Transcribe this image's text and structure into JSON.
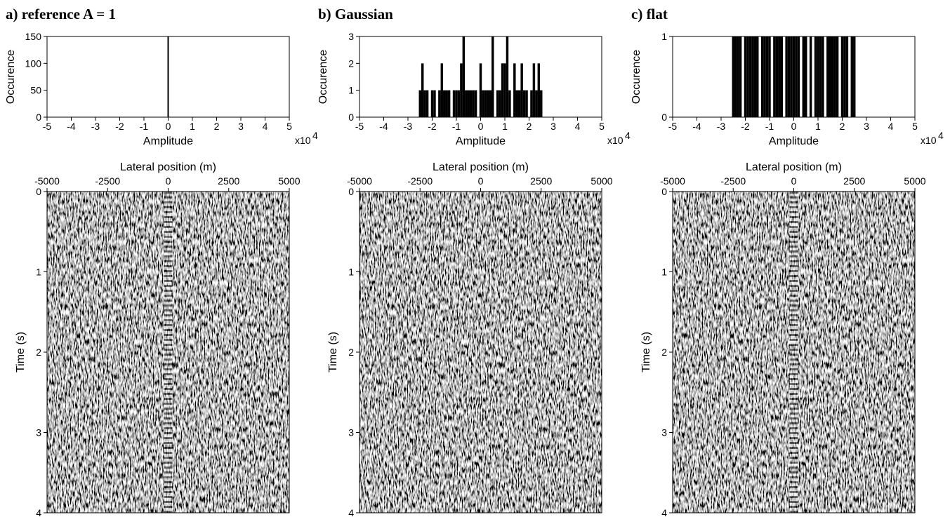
{
  "chart_data": [
    {
      "type": "histogram",
      "title": "a) reference A = 1",
      "xlabel": "Amplitude",
      "ylabel": "Occurence",
      "x_scale_label": "x10",
      "x_scale_exponent": "4",
      "x": [
        0
      ],
      "values": [
        150
      ],
      "color": "#000000",
      "xlim": [
        -5,
        5
      ],
      "xticks": [
        -5,
        -4,
        -3,
        -2,
        -1,
        0,
        1,
        2,
        3,
        4,
        5
      ],
      "ylim": [
        0,
        150
      ],
      "yticks": [
        0,
        50,
        100,
        150
      ]
    },
    {
      "type": "histogram",
      "title": "b) Gaussian",
      "xlabel": "Amplitude",
      "ylabel": "Occurence",
      "x_scale_label": "x10",
      "x_scale_exponent": "4",
      "x": [
        -2.5,
        -2.4,
        -2.3,
        -2.2,
        -2.1,
        -2.0,
        -1.9,
        -1.8,
        -1.7,
        -1.6,
        -1.5,
        -1.4,
        -1.3,
        -1.2,
        -1.1,
        -1.0,
        -0.9,
        -0.8,
        -0.7,
        -0.6,
        -0.5,
        -0.4,
        -0.3,
        -0.2,
        -0.1,
        0,
        0.1,
        0.2,
        0.3,
        0.4,
        0.5,
        0.6,
        0.7,
        0.8,
        0.9,
        1.0,
        1.1,
        1.2,
        1.3,
        1.4,
        1.5,
        1.6,
        1.7,
        1.8,
        1.9,
        2.0,
        2.1,
        2.2,
        2.3,
        2.4,
        2.5
      ],
      "values": [
        1,
        2,
        1,
        1,
        0,
        1,
        1,
        0,
        1,
        2,
        1,
        1,
        1,
        0,
        1,
        1,
        1,
        2,
        3,
        1,
        1,
        1,
        1,
        1,
        0,
        2,
        1,
        1,
        1,
        1,
        3,
        0,
        1,
        1,
        2,
        2,
        3,
        1,
        0,
        2,
        1,
        1,
        2,
        1,
        1,
        0,
        1,
        2,
        1,
        2,
        1
      ],
      "color": "#000000",
      "xlim": [
        -5,
        5
      ],
      "xticks": [
        -5,
        -4,
        -3,
        -2,
        -1,
        0,
        1,
        2,
        3,
        4,
        5
      ],
      "ylim": [
        0,
        3
      ],
      "yticks": [
        0,
        1,
        2,
        3
      ]
    },
    {
      "type": "histogram",
      "title": "c) flat",
      "xlabel": "Amplitude",
      "ylabel": "Occurence",
      "x_scale_label": "x10",
      "x_scale_exponent": "4",
      "x": [
        -2.5,
        -2.4,
        -2.3,
        -2.2,
        -2.1,
        -2.0,
        -1.9,
        -1.8,
        -1.7,
        -1.6,
        -1.5,
        -1.4,
        -1.3,
        -1.2,
        -1.1,
        -1.0,
        -0.9,
        -0.8,
        -0.7,
        -0.6,
        -0.5,
        -0.4,
        -0.3,
        -0.2,
        -0.1,
        0,
        0.1,
        0.2,
        0.3,
        0.4,
        0.5,
        0.6,
        0.7,
        0.8,
        0.9,
        1.0,
        1.1,
        1.2,
        1.3,
        1.4,
        1.5,
        1.6,
        1.7,
        1.8,
        1.9,
        2.0,
        2.1,
        2.2,
        2.3,
        2.4,
        2.5
      ],
      "values": [
        1,
        1,
        1,
        1,
        0,
        1,
        1,
        1,
        1,
        1,
        1,
        0,
        1,
        1,
        1,
        1,
        0,
        1,
        1,
        1,
        1,
        0,
        1,
        1,
        1,
        1,
        1,
        1,
        0,
        1,
        1,
        0,
        1,
        0,
        1,
        1,
        1,
        1,
        0,
        1,
        1,
        1,
        1,
        1,
        0,
        1,
        1,
        1,
        0,
        1,
        1
      ],
      "color": "#000000",
      "xlim": [
        -5,
        5
      ],
      "xticks": [
        -5,
        -4,
        -3,
        -2,
        -1,
        0,
        1,
        2,
        3,
        4,
        5
      ],
      "ylim": [
        0,
        1
      ],
      "yticks": [
        0,
        1
      ]
    },
    {
      "type": "image",
      "xlabel": "Lateral position (m)",
      "ylabel": "Time (s)",
      "xlim": [
        -5000,
        5000
      ],
      "xticks": [
        -5000,
        -2500,
        0,
        2500,
        5000
      ],
      "ylim": [
        0,
        4
      ],
      "yticks": [
        0,
        1,
        2,
        3,
        4
      ],
      "y_reversed": true,
      "center_stripe": true
    },
    {
      "type": "image",
      "xlabel": "Lateral position (m)",
      "ylabel": "Time (s)",
      "xlim": [
        -5000,
        5000
      ],
      "xticks": [
        -5000,
        -2500,
        0,
        2500,
        5000
      ],
      "ylim": [
        0,
        4
      ],
      "yticks": [
        0,
        1,
        2,
        3,
        4
      ],
      "y_reversed": true,
      "center_stripe": false
    },
    {
      "type": "image",
      "xlabel": "Lateral position (m)",
      "ylabel": "Time (s)",
      "xlim": [
        -5000,
        5000
      ],
      "xticks": [
        -5000,
        -2500,
        0,
        2500,
        5000
      ],
      "ylim": [
        0,
        4
      ],
      "yticks": [
        0,
        1,
        2,
        3,
        4
      ],
      "y_reversed": true,
      "center_stripe": true
    }
  ]
}
